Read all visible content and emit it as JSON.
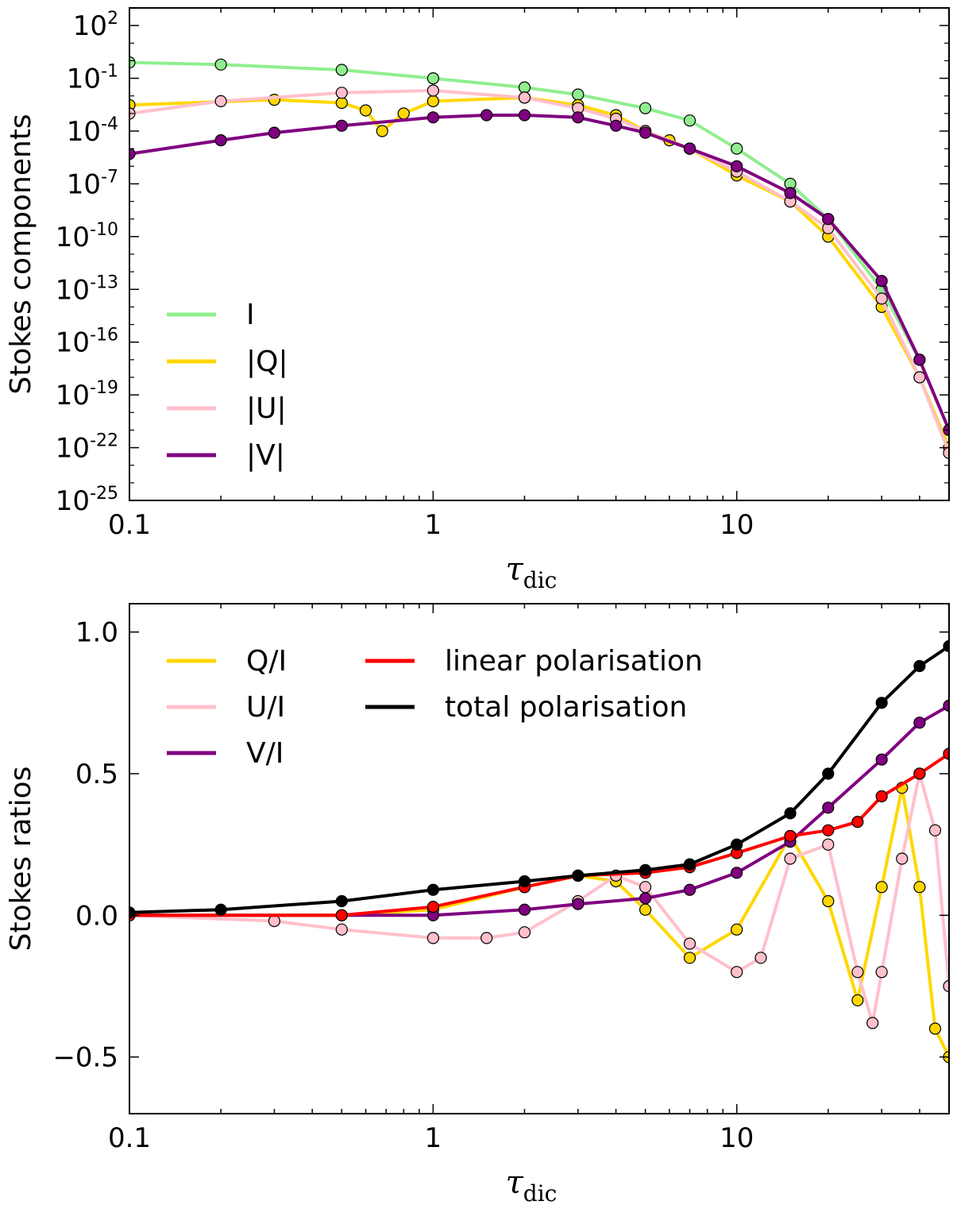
{
  "chart_data": [
    {
      "type": "line",
      "x_scale": "log",
      "y_scale": "log",
      "xlim": [
        0.1,
        50
      ],
      "ylim": [
        1e-25,
        1000.0
      ],
      "xlabel": "τ",
      "xlabel_sub": "dic",
      "ylabel": "Stokes components",
      "x_ticks": [
        0.1,
        1,
        10
      ],
      "x_tick_labels": [
        "0.1",
        "1",
        "10"
      ],
      "y_ticks": [
        2,
        -1,
        -4,
        -7,
        -10,
        -13,
        -16,
        -19,
        -22,
        -25
      ],
      "y_tick_labels": [
        "10",
        "10",
        "10",
        "10",
        "10",
        "10",
        "10",
        "10",
        "10",
        "10"
      ],
      "y_tick_exponents": [
        "2",
        "-1",
        "-4",
        "-7",
        "-10",
        "-13",
        "-16",
        "-19",
        "-22",
        "-25"
      ],
      "legend_position": "bottom-left",
      "legend": [
        "I",
        "|Q|",
        "|U|",
        "|V|"
      ],
      "series_colors": [
        "#90ee90",
        "#ffd700",
        "#ffc0cb",
        "#800080"
      ],
      "series": [
        {
          "name": "I",
          "x": [
            0.1,
            0.2,
            0.5,
            1,
            2,
            3,
            5,
            7,
            10,
            15,
            20,
            30,
            40,
            50
          ],
          "y": [
            0.8,
            0.6,
            0.3,
            0.1,
            0.03,
            0.012,
            0.002,
            0.0004,
            1e-05,
            1e-07,
            1e-09,
            1e-13,
            1e-17,
            1e-21
          ]
        },
        {
          "name": "|Q|",
          "x": [
            0.1,
            0.3,
            0.5,
            0.6,
            0.68,
            0.8,
            1,
            2,
            3,
            4,
            5,
            6,
            7,
            10,
            15,
            20,
            30,
            40,
            50
          ],
          "y": [
            0.003,
            0.006,
            0.004,
            0.0015,
            0.0001,
            0.001,
            0.005,
            0.008,
            0.003,
            0.0008,
            0.0001,
            3e-05,
            1e-05,
            3e-07,
            1e-08,
            1e-10,
            1e-14,
            1e-18,
            1e-22
          ]
        },
        {
          "name": "|U|",
          "x": [
            0.1,
            0.2,
            0.5,
            1,
            2,
            3,
            4,
            5,
            7,
            10,
            15,
            20,
            30,
            40,
            50
          ],
          "y": [
            0.001,
            0.005,
            0.015,
            0.02,
            0.008,
            0.002,
            0.0005,
            0.0001,
            1e-05,
            5e-07,
            1e-08,
            3e-10,
            3e-14,
            1e-18,
            5e-23
          ]
        },
        {
          "name": "|V|",
          "x": [
            0.1,
            0.2,
            0.3,
            0.5,
            1,
            1.5,
            2,
            3,
            4,
            5,
            7,
            10,
            15,
            20,
            30,
            40,
            50
          ],
          "y": [
            5e-06,
            3e-05,
            8e-05,
            0.0002,
            0.0006,
            0.0008,
            0.0008,
            0.0006,
            0.0002,
            8e-05,
            1e-05,
            1e-06,
            3e-08,
            1e-09,
            3e-13,
            1e-17,
            1e-21
          ]
        }
      ]
    },
    {
      "type": "line",
      "x_scale": "log",
      "xlim": [
        0.1,
        50
      ],
      "ylim": [
        -0.7,
        1.1
      ],
      "xlabel": "τ",
      "xlabel_sub": "dic",
      "ylabel": "Stokes ratios",
      "x_ticks": [
        0.1,
        1,
        10
      ],
      "x_tick_labels": [
        "0.1",
        "1",
        "10"
      ],
      "y_ticks": [
        1.0,
        0.5,
        0.0,
        -0.5
      ],
      "y_tick_labels": [
        "1.0",
        "0.5",
        "0.0",
        "−0.5"
      ],
      "legend_position": "top-left",
      "legend": [
        "Q/I",
        "U/I",
        "V/I",
        "linear polarisation",
        "total polarisation"
      ],
      "series_colors": [
        "#ffd700",
        "#ffc0cb",
        "#800080",
        "#ff0000",
        "#000000"
      ],
      "series": [
        {
          "name": "Q/I",
          "x": [
            0.1,
            0.5,
            1,
            2,
            3,
            4,
            5,
            7,
            10,
            15,
            20,
            25,
            30,
            35,
            40,
            45,
            50
          ],
          "y": [
            0.0,
            0.0,
            0.02,
            0.1,
            0.14,
            0.12,
            0.02,
            -0.15,
            -0.05,
            0.28,
            0.05,
            -0.3,
            0.1,
            0.45,
            0.1,
            -0.4,
            -0.5
          ]
        },
        {
          "name": "U/I",
          "x": [
            0.1,
            0.3,
            0.5,
            1,
            1.5,
            2,
            3,
            4,
            5,
            7,
            10,
            12,
            15,
            20,
            25,
            28,
            30,
            35,
            40,
            45,
            50
          ],
          "y": [
            0.0,
            -0.02,
            -0.05,
            -0.08,
            -0.08,
            -0.06,
            0.05,
            0.14,
            0.1,
            -0.1,
            -0.2,
            -0.15,
            0.2,
            0.25,
            -0.2,
            -0.38,
            -0.2,
            0.2,
            0.5,
            0.3,
            -0.25
          ]
        },
        {
          "name": "V/I",
          "x": [
            0.1,
            0.5,
            1,
            2,
            3,
            5,
            7,
            10,
            15,
            20,
            30,
            40,
            50
          ],
          "y": [
            0.0,
            0.0,
            0.0,
            0.02,
            0.04,
            0.06,
            0.09,
            0.15,
            0.26,
            0.38,
            0.55,
            0.68,
            0.74
          ]
        },
        {
          "name": "linear polarisation",
          "x": [
            0.1,
            0.5,
            1,
            2,
            3,
            5,
            7,
            10,
            15,
            20,
            25,
            30,
            40,
            50
          ],
          "y": [
            0.0,
            0.0,
            0.03,
            0.1,
            0.14,
            0.15,
            0.17,
            0.22,
            0.28,
            0.3,
            0.33,
            0.42,
            0.5,
            0.57
          ]
        },
        {
          "name": "total polarisation",
          "x": [
            0.1,
            0.2,
            0.5,
            1,
            2,
            3,
            5,
            7,
            10,
            15,
            20,
            30,
            40,
            50
          ],
          "y": [
            0.01,
            0.02,
            0.05,
            0.09,
            0.12,
            0.14,
            0.16,
            0.18,
            0.25,
            0.36,
            0.5,
            0.75,
            0.88,
            0.95
          ]
        }
      ]
    }
  ]
}
